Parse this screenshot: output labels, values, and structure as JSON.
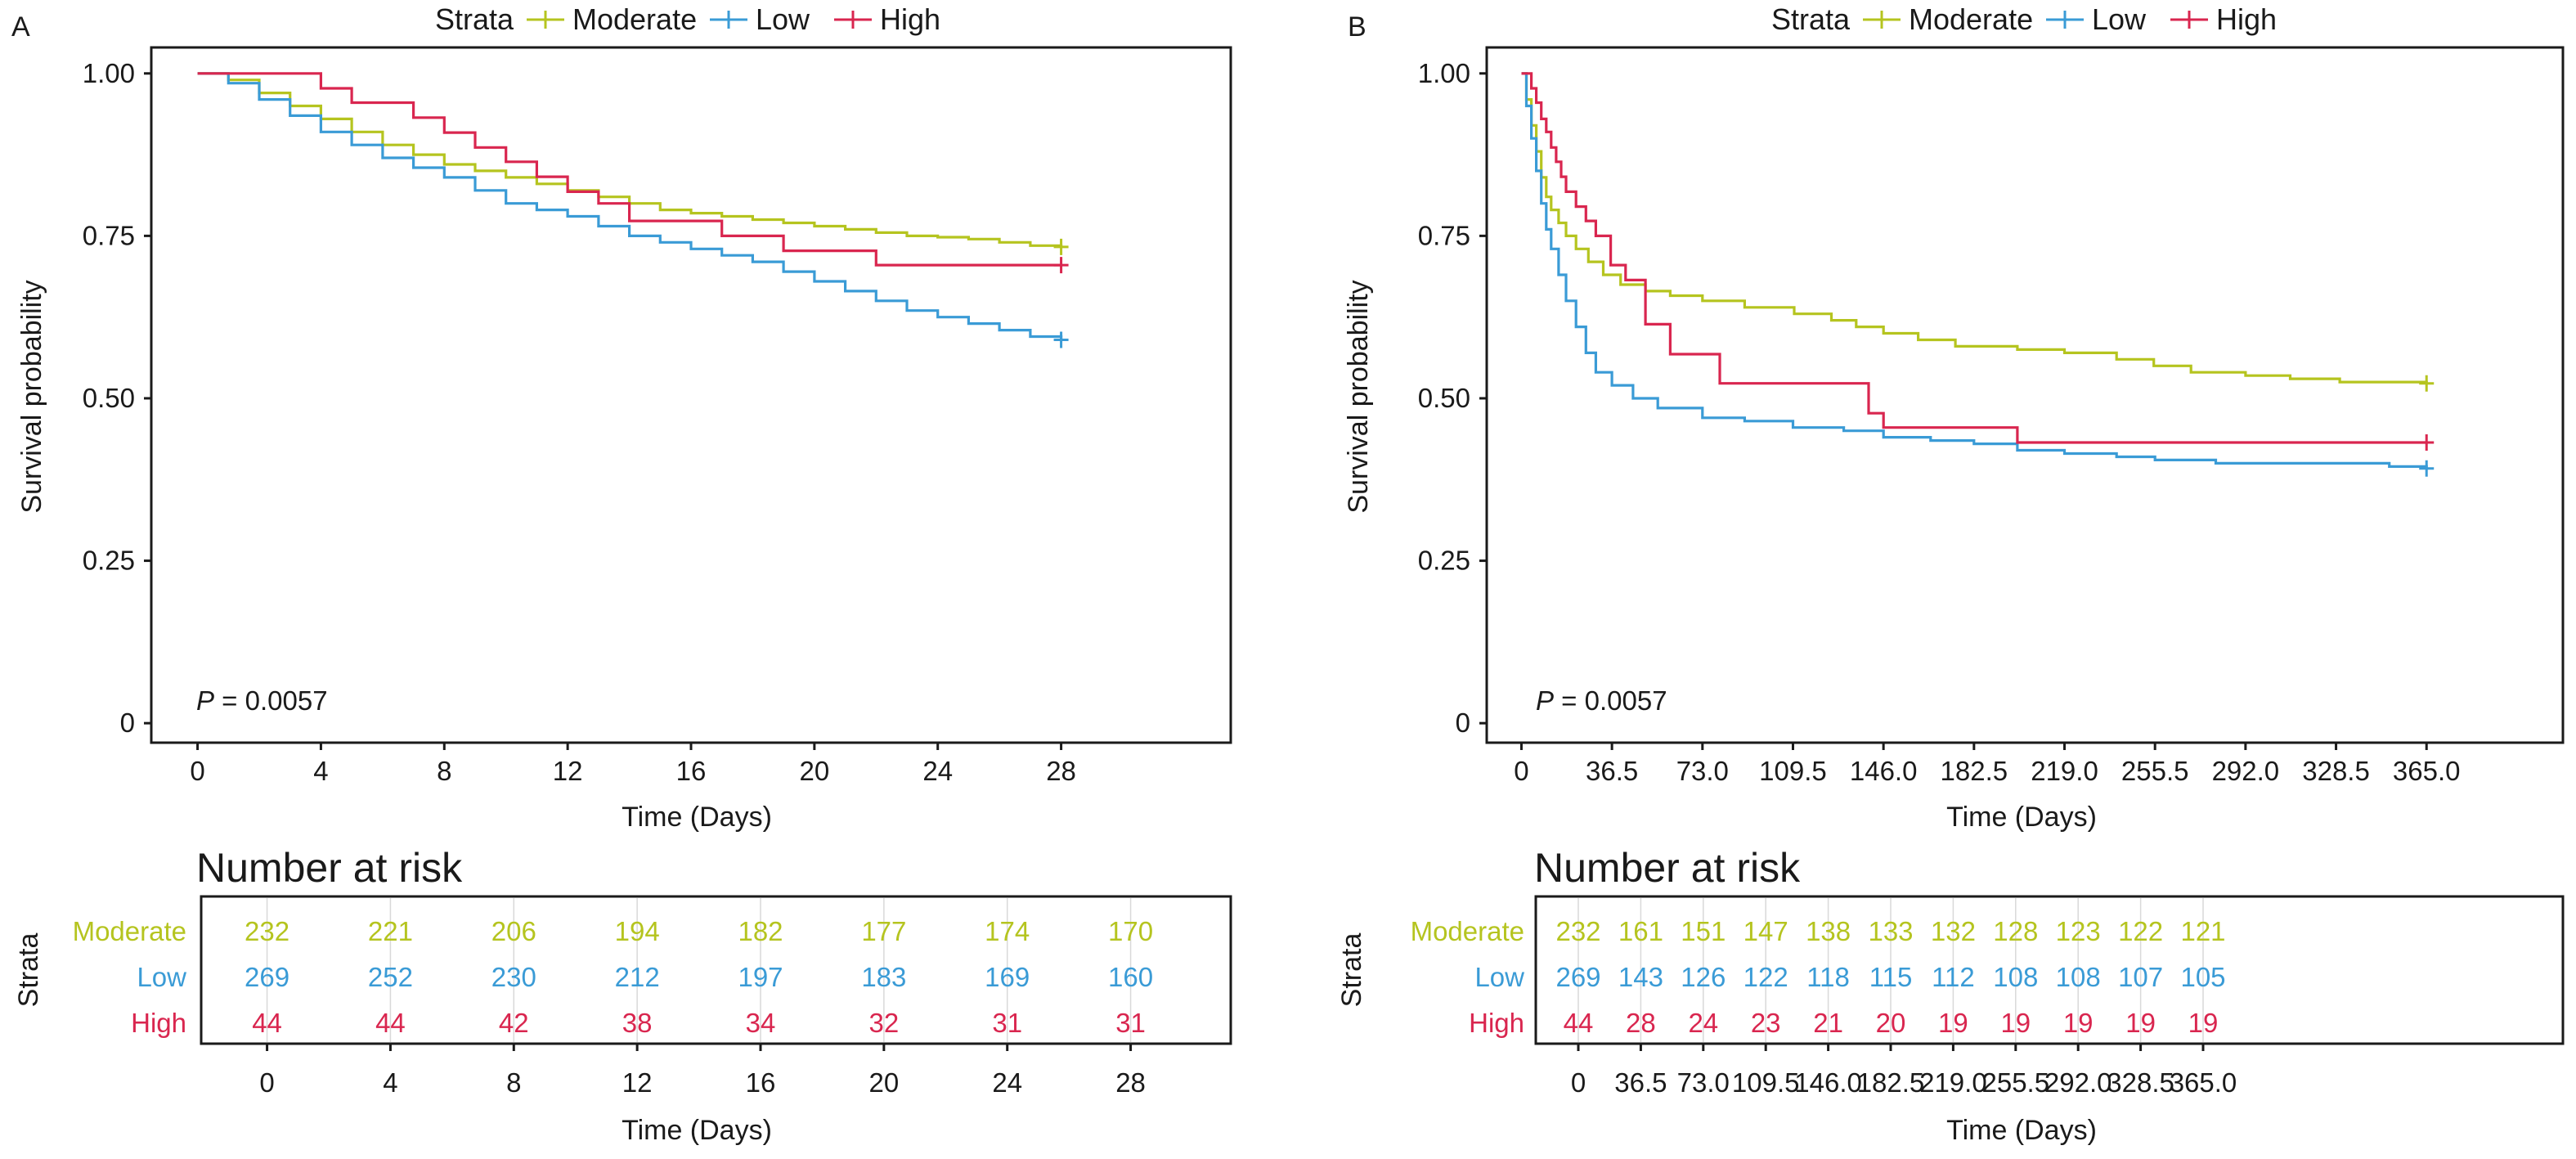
{
  "figure": {
    "colors": {
      "Moderate": "#b5c41f",
      "Low": "#3a9bd6",
      "High": "#d9264f",
      "grey": "#7f7f7f"
    },
    "panels": [
      {
        "letter": "A",
        "legend": {
          "title": "Strata",
          "items": [
            "Moderate",
            "Low",
            "High"
          ]
        },
        "xlabel": "Time (Days)",
        "ylabel": "Survival probability",
        "pvalue": {
          "prefix": "P",
          "rest": " = 0.0057"
        },
        "risk_table": {
          "title": "Number at risk",
          "ylabel": "Strata",
          "xlabel": "Time (Days)",
          "strata": [
            "Moderate",
            "Low",
            "High"
          ]
        }
      },
      {
        "letter": "B",
        "legend": {
          "title": "Strata",
          "items": [
            "Moderate",
            "Low",
            "High"
          ]
        },
        "xlabel": "Time (Days)",
        "ylabel": "Survival probability",
        "pvalue": {
          "prefix": "P",
          "rest": " = 0.0057"
        },
        "risk_table": {
          "title": "Number at risk",
          "ylabel": "Strata",
          "xlabel": "Time (Days)",
          "strata": [
            "Moderate",
            "Low",
            "High"
          ]
        }
      }
    ]
  },
  "chart_data": [
    {
      "type": "line",
      "subtype": "kaplan-meier step curves",
      "panel": "A",
      "xlabel": "Time (Days)",
      "ylabel": "Survival probability",
      "xlim": [
        -1.5,
        33.5
      ],
      "ylim": [
        -0.03,
        1.04
      ],
      "xticks": [
        0,
        4,
        8,
        12,
        16,
        20,
        24,
        28
      ],
      "xtick_labels": [
        "0",
        "4",
        "8",
        "12",
        "16",
        "20",
        "24",
        "28"
      ],
      "yticks": [
        0,
        0.25,
        0.5,
        0.75,
        1.0
      ],
      "ytick_labels": [
        "0",
        "0.25",
        "0.50",
        "0.75",
        "1.00"
      ],
      "grid": false,
      "legend_position": "top",
      "annotation": "P = 0.0057",
      "series": [
        {
          "name": "Moderate",
          "color": "#b5c41f",
          "censor_mark_at_end": true,
          "x": [
            0,
            1,
            2,
            3,
            4,
            5,
            6,
            7,
            8,
            9,
            10,
            11,
            12,
            13,
            14,
            15,
            16,
            17,
            18,
            19,
            20,
            21,
            22,
            23,
            24,
            25,
            26,
            27,
            28
          ],
          "y": [
            1.0,
            0.99,
            0.97,
            0.95,
            0.93,
            0.91,
            0.89,
            0.875,
            0.86,
            0.85,
            0.84,
            0.83,
            0.82,
            0.81,
            0.8,
            0.79,
            0.785,
            0.78,
            0.775,
            0.77,
            0.765,
            0.76,
            0.755,
            0.75,
            0.748,
            0.745,
            0.74,
            0.735,
            0.733
          ]
        },
        {
          "name": "Low",
          "color": "#3a9bd6",
          "censor_mark_at_end": true,
          "x": [
            0,
            1,
            2,
            3,
            4,
            5,
            6,
            7,
            8,
            9,
            10,
            11,
            12,
            13,
            14,
            15,
            16,
            17,
            18,
            19,
            20,
            21,
            22,
            23,
            24,
            25,
            26,
            27,
            28
          ],
          "y": [
            1.0,
            0.985,
            0.96,
            0.935,
            0.91,
            0.89,
            0.87,
            0.855,
            0.84,
            0.82,
            0.8,
            0.79,
            0.78,
            0.765,
            0.75,
            0.74,
            0.73,
            0.72,
            0.71,
            0.695,
            0.68,
            0.665,
            0.65,
            0.635,
            0.625,
            0.615,
            0.605,
            0.595,
            0.59
          ]
        },
        {
          "name": "High",
          "color": "#d9264f",
          "censor_mark_at_end": true,
          "x": [
            0,
            4,
            5,
            7,
            8,
            9,
            10,
            11,
            12,
            13,
            14,
            15,
            17,
            19,
            20,
            22,
            28
          ],
          "y": [
            1.0,
            0.977,
            0.955,
            0.932,
            0.909,
            0.886,
            0.864,
            0.841,
            0.818,
            0.8,
            0.773,
            0.773,
            0.75,
            0.727,
            0.727,
            0.705,
            0.705
          ]
        }
      ]
    },
    {
      "type": "line",
      "subtype": "kaplan-meier step curves",
      "panel": "B",
      "xlabel": "Time (Days)",
      "ylabel": "Survival probability",
      "xlim": [
        -14,
        420
      ],
      "ylim": [
        -0.03,
        1.04
      ],
      "xticks": [
        0,
        36.5,
        73.0,
        109.5,
        146.0,
        182.5,
        219.0,
        255.5,
        292.0,
        328.5,
        365.0
      ],
      "xtick_labels": [
        "0",
        "36.5",
        "73.0",
        "109.5",
        "146.0",
        "182.5",
        "219.0",
        "255.5",
        "292.0",
        "328.5",
        "365.0"
      ],
      "yticks": [
        0,
        0.25,
        0.5,
        0.75,
        1.0
      ],
      "ytick_labels": [
        "0",
        "0.25",
        "0.50",
        "0.75",
        "1.00"
      ],
      "grid": false,
      "legend_position": "top",
      "annotation": "P = 0.0057",
      "series": [
        {
          "name": "Moderate",
          "color": "#b5c41f",
          "censor_mark_at_end": true,
          "x": [
            0,
            2,
            4,
            6,
            8,
            10,
            12,
            15,
            18,
            22,
            27,
            33,
            40,
            50,
            60,
            73,
            90,
            110,
            125,
            135,
            146,
            160,
            175,
            200,
            219,
            240,
            255,
            270,
            292,
            310,
            330,
            365
          ],
          "y": [
            1.0,
            0.96,
            0.92,
            0.88,
            0.84,
            0.81,
            0.79,
            0.77,
            0.75,
            0.73,
            0.71,
            0.69,
            0.675,
            0.665,
            0.658,
            0.65,
            0.64,
            0.63,
            0.62,
            0.61,
            0.6,
            0.59,
            0.58,
            0.575,
            0.57,
            0.56,
            0.55,
            0.54,
            0.535,
            0.53,
            0.525,
            0.523
          ]
        },
        {
          "name": "Low",
          "color": "#3a9bd6",
          "censor_mark_at_end": true,
          "x": [
            0,
            2,
            4,
            6,
            8,
            10,
            12,
            15,
            18,
            22,
            26,
            30,
            36.5,
            45,
            55,
            73,
            90,
            109.5,
            130,
            146,
            165,
            182.5,
            200,
            219,
            240,
            255.5,
            280,
            300,
            330,
            350,
            365
          ],
          "y": [
            1.0,
            0.95,
            0.9,
            0.85,
            0.8,
            0.76,
            0.73,
            0.69,
            0.65,
            0.61,
            0.57,
            0.54,
            0.52,
            0.5,
            0.485,
            0.47,
            0.465,
            0.455,
            0.45,
            0.44,
            0.435,
            0.43,
            0.42,
            0.415,
            0.41,
            0.405,
            0.4,
            0.4,
            0.4,
            0.395,
            0.392
          ]
        },
        {
          "name": "High",
          "color": "#d9264f",
          "censor_mark_at_end": true,
          "x": [
            0,
            4,
            6,
            8,
            10,
            12,
            14,
            16,
            18,
            22,
            26,
            30,
            36,
            42,
            50,
            60,
            80,
            140,
            146,
            200,
            365
          ],
          "y": [
            1.0,
            0.977,
            0.955,
            0.93,
            0.91,
            0.886,
            0.864,
            0.841,
            0.818,
            0.795,
            0.773,
            0.75,
            0.705,
            0.682,
            0.614,
            0.568,
            0.523,
            0.477,
            0.455,
            0.432,
            0.432
          ]
        }
      ]
    },
    {
      "type": "table",
      "panel": "A",
      "title": "Number at risk",
      "xlabel": "Time (Days)",
      "ylabel": "Strata",
      "columns": [
        "0",
        "4",
        "8",
        "12",
        "16",
        "20",
        "24",
        "28"
      ],
      "rows": [
        {
          "name": "Moderate",
          "color": "#b5c41f",
          "values": [
            232,
            221,
            206,
            194,
            182,
            177,
            174,
            170
          ]
        },
        {
          "name": "Low",
          "color": "#3a9bd6",
          "values": [
            269,
            252,
            230,
            212,
            197,
            183,
            169,
            160
          ]
        },
        {
          "name": "High",
          "color": "#d9264f",
          "values": [
            44,
            44,
            42,
            38,
            34,
            32,
            31,
            31
          ]
        }
      ]
    },
    {
      "type": "table",
      "panel": "B",
      "title": "Number at risk",
      "xlabel": "Time (Days)",
      "ylabel": "Strata",
      "columns": [
        "0",
        "36.5",
        "73.0",
        "109.5",
        "146.0",
        "182.5",
        "219.0",
        "255.5",
        "292.0",
        "328.5",
        "365.0"
      ],
      "rows": [
        {
          "name": "Moderate",
          "color": "#b5c41f",
          "values": [
            232,
            161,
            151,
            147,
            138,
            133,
            132,
            128,
            123,
            122,
            121
          ]
        },
        {
          "name": "Low",
          "color": "#3a9bd6",
          "values": [
            269,
            143,
            126,
            122,
            118,
            115,
            112,
            108,
            108,
            107,
            105
          ]
        },
        {
          "name": "High",
          "color": "#d9264f",
          "values": [
            44,
            28,
            24,
            23,
            21,
            20,
            19,
            19,
            19,
            19,
            19
          ]
        }
      ]
    }
  ]
}
